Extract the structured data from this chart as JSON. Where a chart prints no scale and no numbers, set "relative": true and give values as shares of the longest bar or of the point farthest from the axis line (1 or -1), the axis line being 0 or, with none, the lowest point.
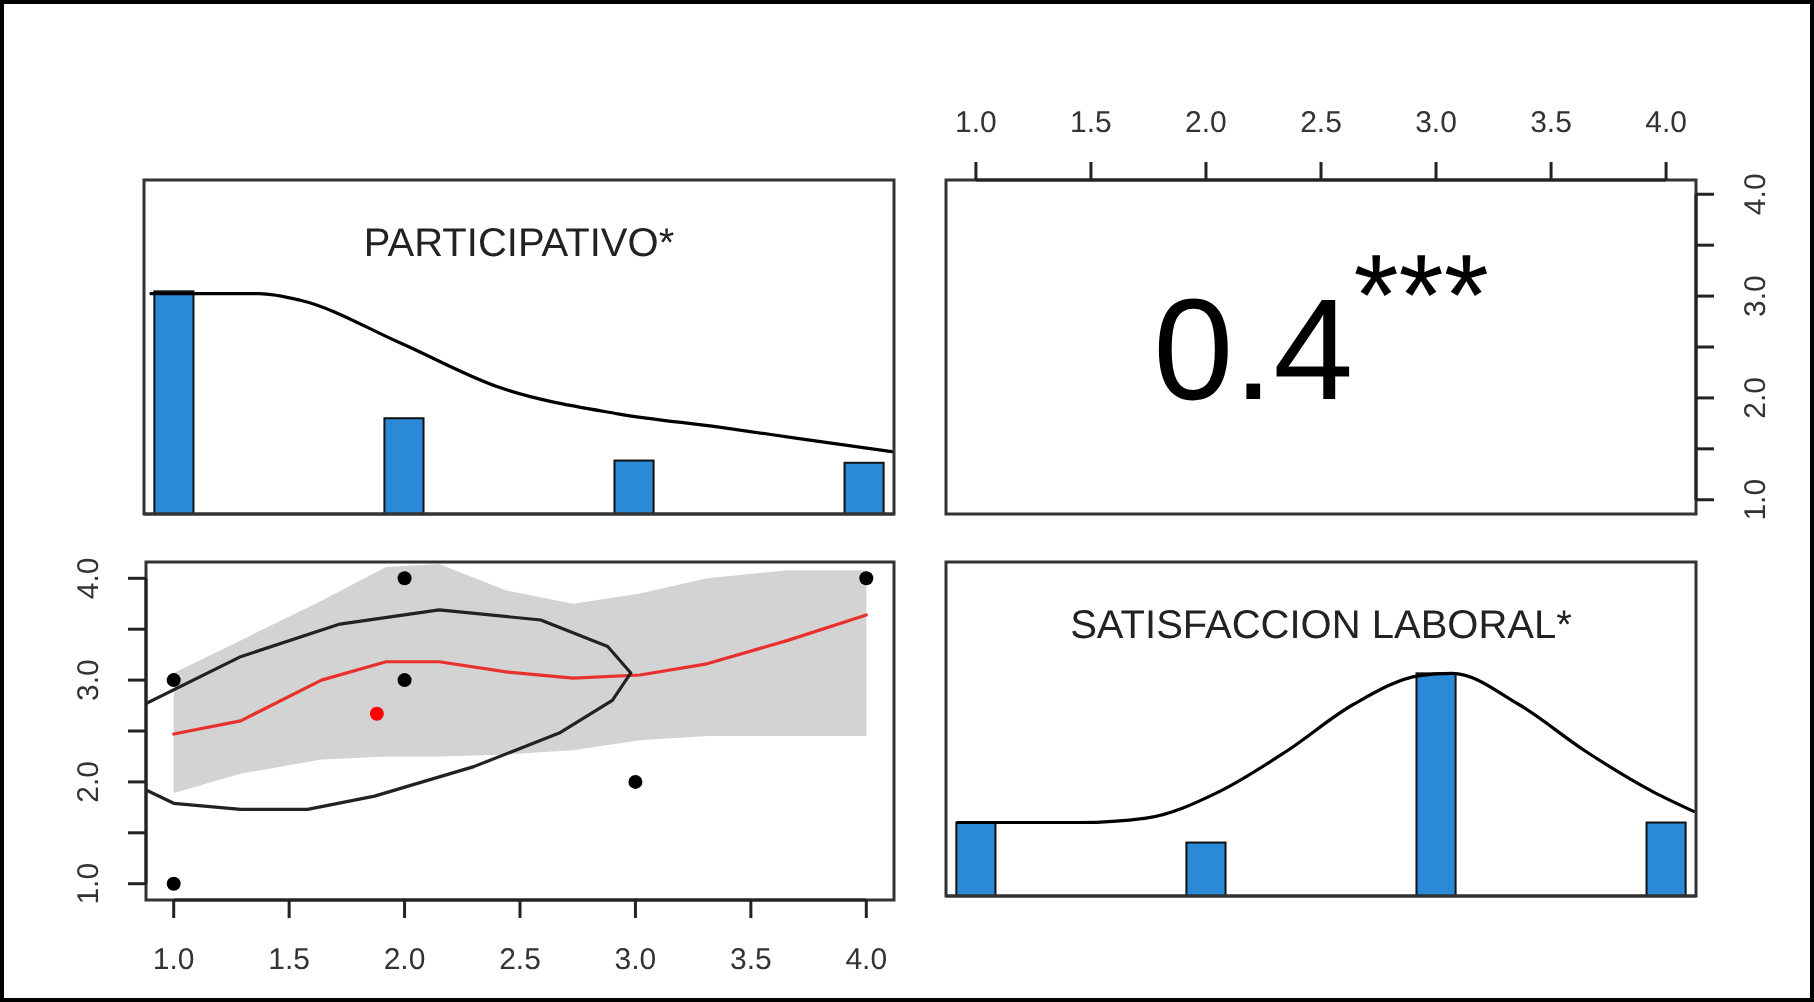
{
  "chart_data": [
    {
      "type": "bar",
      "title": "PARTICIPATIVO*",
      "relative": true,
      "x": [
        1,
        2,
        3,
        4
      ],
      "xlim": [
        0.87,
        4.13
      ],
      "series": [
        {
          "color": "#2a8ad8",
          "values": [
            1,
            0.43,
            0.24,
            0.23
          ]
        },
        {
          "type": "line",
          "color": "#000000",
          "x": [
            0.9,
            1.37,
            1.55,
            1.98,
            2.41,
            2.93,
            3.37,
            3.71,
            4.12
          ],
          "values": [
            0.99,
            0.99,
            0.96,
            0.77,
            0.57,
            0.45,
            0.39,
            0.34,
            0.28
          ]
        }
      ]
    },
    {
      "type": "scatter",
      "annotations": [
        "0.4$^{***}$"
      ],
      "xlim": [
        0.87,
        4.13
      ],
      "xticks": [
        {
          "value": 1,
          "label": "1.0"
        },
        1.5,
        {
          "value": 2,
          "label": "2.0"
        },
        2.5,
        {
          "value": 3,
          "label": "3.0"
        },
        3.5,
        {
          "value": 4,
          "label": "4.0"
        }
      ],
      "ylim": [
        0.86,
        4.14
      ],
      "yticks": [
        {
          "value": 1,
          "label": "1.0"
        },
        {
          "value": 1.5,
          "label": null
        },
        {
          "value": 2,
          "label": "2.0"
        },
        {
          "value": 2.5,
          "label": null
        },
        {
          "value": 3,
          "label": "3.0"
        },
        {
          "value": 3.5,
          "label": null
        },
        {
          "value": 4,
          "label": "4.0"
        }
      ]
    },
    {
      "type": "scatter",
      "xlim": [
        0.88,
        4.12
      ],
      "ylim": [
        0.84,
        4.16
      ],
      "xticks": [
        {
          "value": 1,
          "label": "1.0"
        },
        1.5,
        {
          "value": 2,
          "label": "2.0"
        },
        2.5,
        {
          "value": 3,
          "label": "3.0"
        },
        3.5,
        {
          "value": 4,
          "label": "4.0"
        }
      ],
      "yticks": [
        {
          "value": 1,
          "label": "1.0"
        },
        {
          "value": 1.5,
          "label": null
        },
        {
          "value": 2,
          "label": "2.0"
        },
        {
          "value": 2.5,
          "label": null
        },
        {
          "value": 3,
          "label": "3.0"
        },
        {
          "value": 3.5,
          "label": null
        },
        {
          "value": 4,
          "label": "4.0"
        }
      ],
      "series": [
        {
          "type": "line",
          "color": "#e8302c",
          "x": [
            1.0,
            1.29,
            1.64,
            1.92,
            2.15,
            2.44,
            2.73,
            3.02,
            3.31,
            3.66,
            4.0
          ],
          "values": [
            2.47,
            2.6,
            3.0,
            3.18,
            3.18,
            3.08,
            3.02,
            3.05,
            3.16,
            3.39,
            3.64
          ],
          "lower": [
            1.89,
            2.08,
            2.22,
            2.25,
            2.25,
            2.27,
            2.31,
            2.41,
            2.45,
            2.45,
            2.45
          ],
          "upper": [
            3.07,
            3.39,
            3.78,
            4.11,
            4.14,
            3.88,
            3.75,
            3.85,
            4.0,
            4.08,
            4.08
          ]
        },
        {
          "type": "line",
          "color": "#222222",
          "x": [
            0.88,
            1.29,
            1.72,
            2.15,
            2.59,
            2.88,
            2.98,
            2.9,
            2.67,
            2.3,
            1.87,
            1.58,
            1.29,
            1.0,
            0.88
          ],
          "values": [
            2.77,
            3.23,
            3.55,
            3.69,
            3.59,
            3.33,
            3.07,
            2.8,
            2.48,
            2.15,
            1.86,
            1.73,
            1.73,
            1.79,
            1.92
          ]
        },
        {
          "color": "#000000",
          "marker": "circle",
          "x": [
            1,
            1,
            2,
            2,
            3,
            4
          ],
          "values": [
            1,
            3,
            4,
            3,
            2,
            4
          ]
        },
        {
          "color": "#ff0000",
          "marker": "circle",
          "x": [
            1.88
          ],
          "values": [
            2.67
          ]
        }
      ]
    },
    {
      "type": "bar",
      "title": "SATISFACCION LABORAL*",
      "relative": true,
      "x": [
        1,
        2,
        3,
        4
      ],
      "xlim": [
        0.87,
        4.13
      ],
      "series": [
        {
          "color": "#2a8ad8",
          "values": [
            0.33,
            0.24,
            1,
            0.33
          ]
        },
        {
          "type": "line",
          "color": "#000000",
          "x": [
            0.92,
            1.45,
            1.74,
            2.06,
            2.35,
            2.64,
            2.93,
            3.07,
            3.36,
            3.65,
            3.94,
            4.12
          ],
          "values": [
            0.33,
            0.33,
            0.35,
            0.47,
            0.65,
            0.86,
            0.99,
            1.0,
            0.86,
            0.65,
            0.47,
            0.38
          ]
        }
      ]
    }
  ]
}
